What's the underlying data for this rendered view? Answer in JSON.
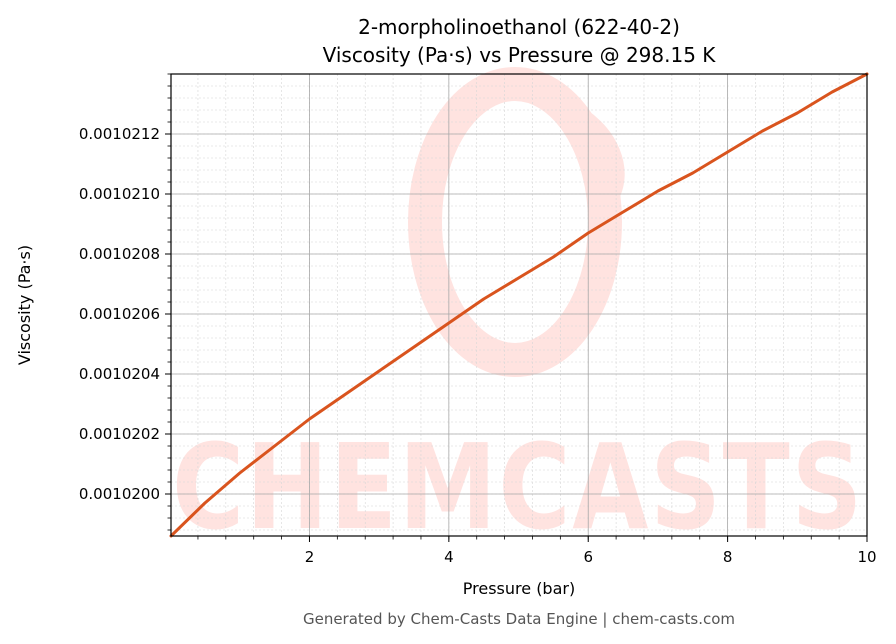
{
  "chart_data": {
    "type": "line",
    "title_line1": "2-morpholinoethanol (622-40-2)",
    "title_line2": "Viscosity (Pa·s) vs Pressure @ 298.15 K",
    "xlabel": "Pressure (bar)",
    "ylabel": "Viscosity (Pa·s)",
    "xlim": [
      0.01325,
      10
    ],
    "ylim": [
      0.00101986,
      0.0010214
    ],
    "xticks": [
      2,
      4,
      6,
      8,
      10
    ],
    "xtick_labels": [
      "2",
      "4",
      "6",
      "8",
      "10"
    ],
    "yticks": [
      0.00102,
      0.0010202,
      0.0010204,
      0.0010206,
      0.0010208,
      0.001021,
      0.0010212
    ],
    "ytick_labels": [
      "0.0010200",
      "0.0010202",
      "0.0010204",
      "0.0010206",
      "0.0010208",
      "0.0010210",
      "0.0010212"
    ],
    "grid": true,
    "line_color": "#d9541e",
    "series": [
      {
        "x": [
          0.01325,
          0.5,
          1,
          1.5,
          2,
          2.5,
          3,
          3.5,
          4,
          4.5,
          5,
          5.5,
          6,
          6.5,
          7,
          7.5,
          8,
          8.5,
          9,
          9.5,
          10
        ],
        "y": [
          0.00101986,
          0.00101997,
          0.00102007,
          0.00102016,
          0.00102025,
          0.00102033,
          0.00102041,
          0.00102049,
          0.00102057,
          0.00102065,
          0.00102072,
          0.00102079,
          0.00102087,
          0.00102094,
          0.00102101,
          0.00102107,
          0.00102114,
          0.00102121,
          0.00102127,
          0.00102134,
          0.0010214
        ]
      }
    ]
  },
  "watermark": {
    "text": "CHEMCASTS",
    "color": "#ffe3e0"
  },
  "footer": "Generated by Chem-Casts Data Engine | chem-casts.com"
}
